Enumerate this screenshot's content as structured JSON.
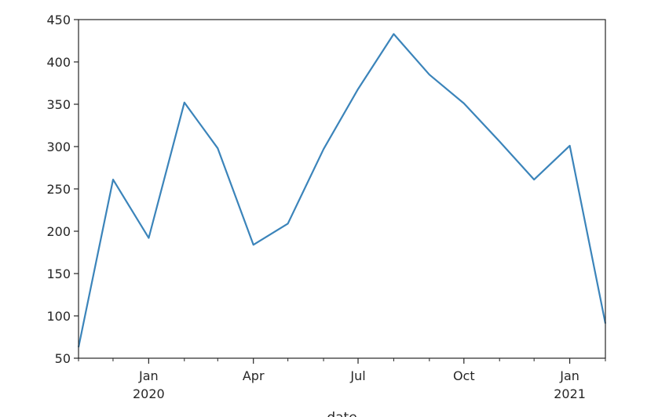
{
  "chart_data": {
    "type": "line",
    "xlabel": "date",
    "ylabel": "",
    "title": "",
    "ylim": [
      50,
      450
    ],
    "xlim": [
      "2019-11-01",
      "2021-02-01"
    ],
    "grid": false,
    "y_ticks": [
      50,
      100,
      150,
      200,
      250,
      300,
      350,
      400,
      450
    ],
    "x_ticks": [
      {
        "date": "2020-01-01",
        "label": "Jan",
        "sublabel": "2020"
      },
      {
        "date": "2020-04-01",
        "label": "Apr",
        "sublabel": ""
      },
      {
        "date": "2020-07-01",
        "label": "Jul",
        "sublabel": ""
      },
      {
        "date": "2020-10-01",
        "label": "Oct",
        "sublabel": ""
      },
      {
        "date": "2021-01-01",
        "label": "Jan",
        "sublabel": "2021"
      }
    ],
    "series": [
      {
        "color": "#3b84ba",
        "x": [
          "2019-11-01",
          "2019-12-01",
          "2020-01-01",
          "2020-02-01",
          "2020-03-01",
          "2020-04-01",
          "2020-05-01",
          "2020-06-01",
          "2020-07-01",
          "2020-08-01",
          "2020-09-01",
          "2020-10-01",
          "2020-11-01",
          "2020-12-01",
          "2021-01-01",
          "2021-02-01"
        ],
        "values": [
          63,
          261,
          192,
          352,
          298,
          184,
          209,
          297,
          368,
          433,
          385,
          351,
          306,
          261,
          301,
          91
        ]
      }
    ]
  }
}
